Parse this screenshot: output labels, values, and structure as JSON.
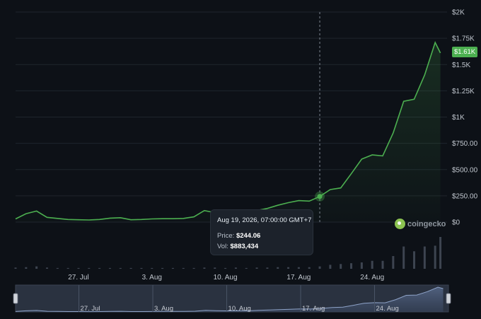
{
  "chart_data": {
    "type": "line",
    "title": "",
    "xlabel": "",
    "ylabel": "",
    "ylim": [
      0,
      2000
    ],
    "grid": true,
    "y_ticks": [
      "$2K",
      "$1.75K",
      "$1.5K",
      "$1.25K",
      "$1K",
      "$750.00",
      "$500.00",
      "$250.00",
      "$0"
    ],
    "y_tick_values": [
      2000,
      1750,
      1500,
      1250,
      1000,
      750,
      500,
      250,
      0
    ],
    "x_ticks": [
      "27. Jul",
      "3. Aug",
      "10. Aug",
      "17. Aug",
      "24. Aug"
    ],
    "x_tick_days": [
      27.0,
      34.0,
      41.0,
      48.0,
      55.0
    ],
    "x_start_day": 21.0,
    "x_end_day": 62.0,
    "series": [
      {
        "x": [
          21.0,
          22.0,
          23.0,
          24.0,
          25.0,
          26.0,
          27.0,
          28.0,
          29.0,
          30.0,
          31.0,
          32.0,
          33.0,
          34.0,
          35.0,
          36.0,
          37.0,
          38.0,
          39.0,
          40.0,
          41.0,
          42.0,
          43.0,
          44.0,
          45.0,
          46.0,
          47.0,
          48.0,
          49.0,
          50.0,
          51.0,
          52.0,
          53.0,
          54.0,
          55.0,
          56.0,
          57.0,
          58.0,
          59.0,
          60.0,
          61.0,
          61.5
        ],
        "values": [
          30,
          80,
          105,
          45,
          35,
          25,
          22,
          20,
          25,
          38,
          42,
          22,
          25,
          30,
          32,
          32,
          35,
          50,
          110,
          90,
          75,
          85,
          72,
          110,
          130,
          160,
          185,
          205,
          200,
          244,
          310,
          325,
          460,
          600,
          640,
          630,
          850,
          1150,
          1170,
          1400,
          1710,
          1610
        ]
      }
    ],
    "volume": [
      1.5,
      2,
      3,
      1.5,
      1,
      1,
      1,
      1,
      1,
      1,
      1,
      1,
      1,
      1,
      1,
      1,
      1,
      1,
      1.5,
      1.5,
      1,
      1.5,
      1,
      1.5,
      1.5,
      2,
      2,
      2,
      2,
      3,
      5,
      6,
      7,
      8,
      10,
      10,
      16,
      28,
      22,
      28,
      29,
      40
    ],
    "line_color": "#4caf50",
    "current_price_badge": "$1.61K",
    "crosshair_day": 50.0,
    "tooltip": {
      "date": "Aug 19, 2026, 07:00:00 GMT+7",
      "price_label": "Price:",
      "price_value": "$244.06",
      "vol_label": "Vol:",
      "vol_value": "$883,434"
    },
    "navigator": {
      "x_ticks": [
        "27. Jul",
        "3. Aug",
        "10. Aug",
        "17. Aug",
        "24. Aug"
      ]
    },
    "watermark": "coingecko"
  }
}
